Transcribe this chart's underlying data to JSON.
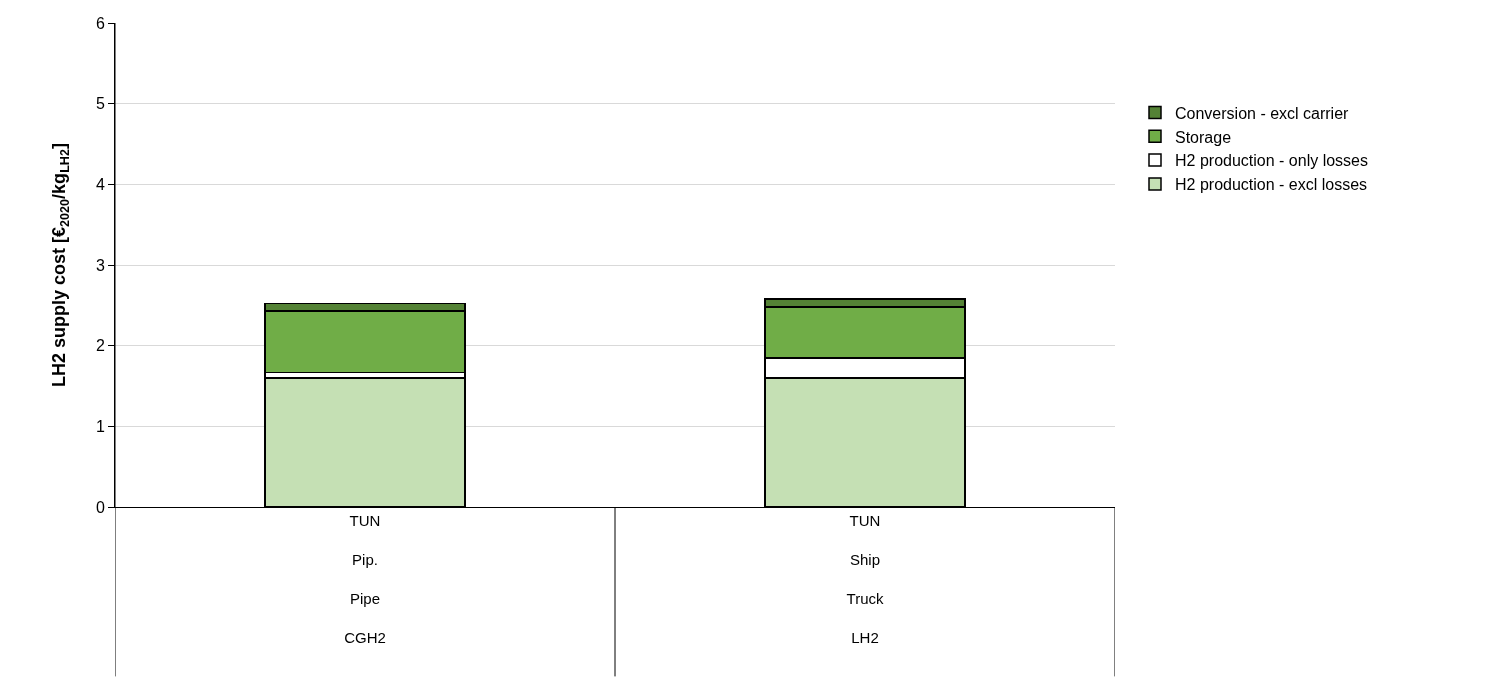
{
  "chart_data": {
    "type": "bar",
    "stacked": true,
    "ylabel": "LH2 supply cost [€$_{2020}$/kg$_{LH2}$]",
    "categories": [
      "TUN\nPip.\nPipe\nCGH2",
      "TUN\nShip\nTruck\nLH2"
    ],
    "series": [
      {
        "name": "H2 production - excl losses",
        "color": "#c5e0b4",
        "values": [
          1.6,
          1.6
        ]
      },
      {
        "name": "H2 production - only losses",
        "color": "#ffffff",
        "values": [
          0.07,
          0.25
        ]
      },
      {
        "name": "Storage",
        "color": "#70ad47",
        "values": [
          0.76,
          0.63
        ]
      },
      {
        "name": "Conversion - excl carrier",
        "color": "#548235",
        "values": [
          0.09,
          0.1
        ]
      }
    ],
    "ylim": [
      0,
      6
    ],
    "yticks": [
      0,
      1,
      2,
      3,
      4,
      5,
      6
    ],
    "grid": "y",
    "legend": "right"
  }
}
